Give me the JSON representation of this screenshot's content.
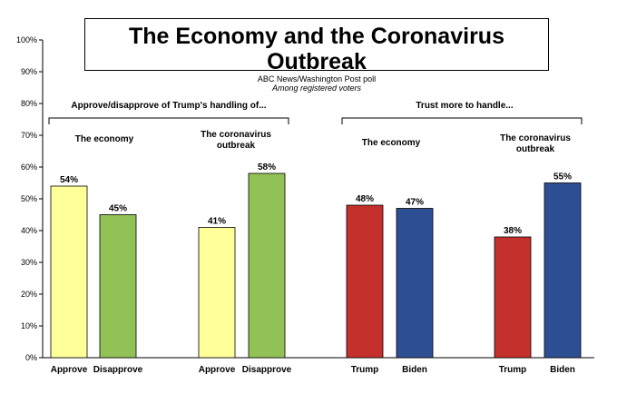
{
  "chart_data": {
    "type": "bar",
    "title": "The Economy and the Coronavirus Outbreak",
    "subtitle": "ABC News/Washington  Post poll",
    "subtitle2": "Among registered voters",
    "ylim": [
      0,
      100
    ],
    "yticks": [
      "0%",
      "10%",
      "20%",
      "30%",
      "40%",
      "50%",
      "60%",
      "70%",
      "80%",
      "90%",
      "100%"
    ],
    "sections": [
      {
        "label": "Approve/disapprove of Trump's handling of..."
      },
      {
        "label": "Trust more to handle..."
      }
    ],
    "groups": [
      {
        "label": "The economy"
      },
      {
        "label": "The coronavirus outbreak"
      },
      {
        "label": "The economy"
      },
      {
        "label": "The coronavirus outbreak"
      }
    ],
    "bars": [
      {
        "category": "Approve",
        "value": 54,
        "label": "54%",
        "color": "#FFFF99"
      },
      {
        "category": "Disapprove",
        "value": 45,
        "label": "45%",
        "color": "#92C255"
      },
      {
        "category": "Approve",
        "value": 41,
        "label": "41%",
        "color": "#FFFF99"
      },
      {
        "category": "Disapprove",
        "value": 58,
        "label": "58%",
        "color": "#92C255"
      },
      {
        "category": "Trump",
        "value": 48,
        "label": "48%",
        "color": "#C4302B"
      },
      {
        "category": "Biden",
        "value": 47,
        "label": "47%",
        "color": "#2E4E94"
      },
      {
        "category": "Trump",
        "value": 38,
        "label": "38%",
        "color": "#C4302B"
      },
      {
        "category": "Biden",
        "value": 55,
        "label": "55%",
        "color": "#2E4E94"
      }
    ]
  }
}
